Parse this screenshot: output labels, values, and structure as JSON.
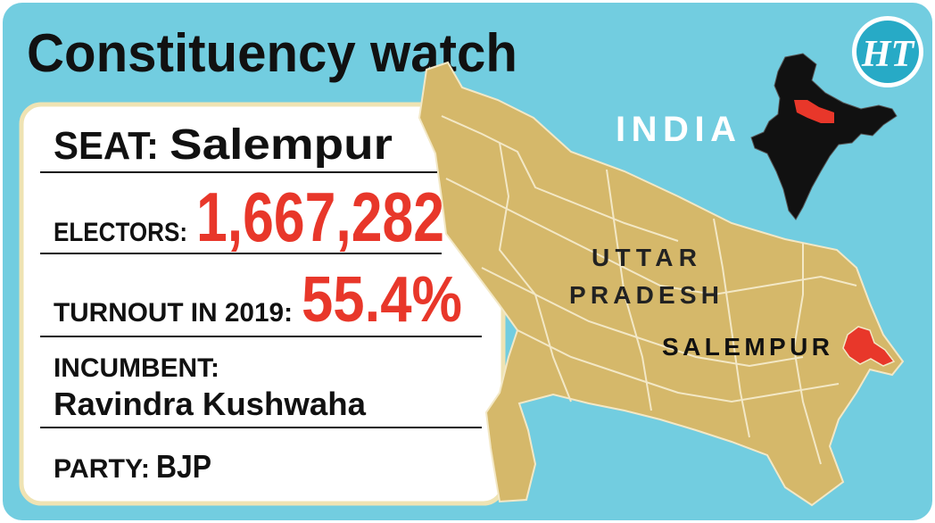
{
  "header": {
    "title": "Constituency watch",
    "logo": "HT"
  },
  "card": {
    "seat_label": "SEAT:",
    "seat": "Salempur",
    "electors_label": "ELECTORS:",
    "electors": "1,667,282",
    "turnout_label": "TURNOUT IN 2019:",
    "turnout": "55.4%",
    "incumbent_label": "INCUMBENT:",
    "incumbent": "Ravindra Kushwaha",
    "party_label": "PARTY:",
    "party": "BJP"
  },
  "map": {
    "country": "INDIA",
    "state_line1": "UTTAR",
    "state_line2": "PRADESH",
    "seat": "SALEMPUR"
  }
}
